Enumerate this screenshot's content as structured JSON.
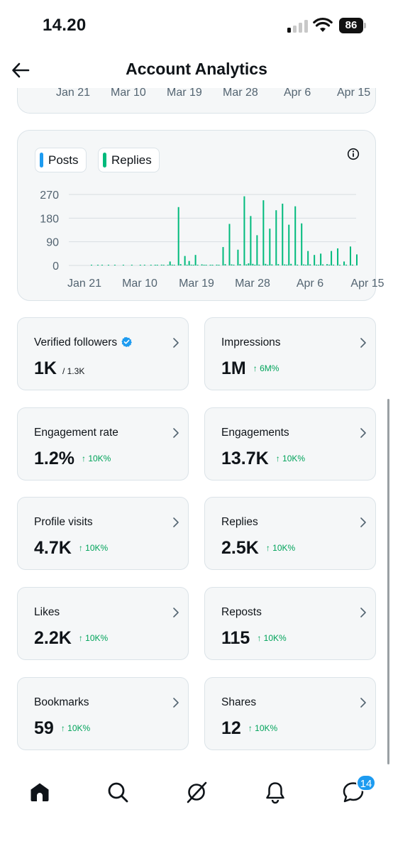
{
  "status_bar": {
    "time": "14.20",
    "battery": "86"
  },
  "header": {
    "title": "Account Analytics"
  },
  "top_chart_axis": [
    "Jan 21",
    "Mar 10",
    "Mar 19",
    "Mar 28",
    "Apr 6",
    "Apr 15"
  ],
  "legend": [
    {
      "label": "Posts",
      "color": "#1d9bf0"
    },
    {
      "label": "Replies",
      "color": "#00ba7c"
    }
  ],
  "chart_data": {
    "type": "bar",
    "ylim": [
      0,
      270
    ],
    "yticks": [
      "270",
      "180",
      "90",
      "0"
    ],
    "xticks": [
      "Jan 21",
      "Mar 10",
      "Mar 19",
      "Mar 28",
      "Apr 6",
      "Apr 15"
    ],
    "series": [
      {
        "name": "Replies",
        "color": "#00ba7c",
        "values": [
          0,
          1,
          0,
          0,
          2,
          0,
          1,
          0,
          0,
          1,
          0,
          0,
          1,
          0,
          0,
          0,
          1,
          0,
          0,
          0,
          1,
          0,
          0,
          0,
          1,
          0,
          1,
          0,
          0,
          1,
          0,
          2,
          1,
          0,
          3,
          1,
          0,
          2,
          15,
          3,
          1,
          0,
          222,
          5,
          0,
          36,
          2,
          17,
          3,
          1,
          40,
          1,
          0,
          4,
          2,
          1,
          0,
          2,
          1,
          0,
          3,
          1,
          0,
          70,
          5,
          0,
          158,
          4,
          3,
          0,
          60,
          5,
          0,
          263,
          4,
          8,
          188,
          6,
          2,
          115,
          3,
          0,
          248,
          6,
          2,
          140,
          4,
          0,
          210,
          5,
          0,
          235,
          4,
          3,
          155,
          6,
          0,
          225,
          3,
          0,
          160,
          4,
          2,
          55,
          4,
          0,
          40,
          3,
          2,
          45,
          4,
          0,
          5,
          3,
          55,
          3,
          0,
          65,
          2,
          0,
          15,
          3,
          0,
          72,
          3,
          0,
          42
        ]
      }
    ]
  },
  "stats": [
    {
      "label": "Verified followers",
      "value": "1K",
      "sub": "/ 1.3K",
      "change": "",
      "verified": true
    },
    {
      "label": "Impressions",
      "value": "1M",
      "sub": "",
      "change": "↑ 6M%"
    },
    {
      "label": "Engagement rate",
      "value": "1.2%",
      "sub": "",
      "change": "↑ 10K%"
    },
    {
      "label": "Engagements",
      "value": "13.7K",
      "sub": "",
      "change": "↑ 10K%"
    },
    {
      "label": "Profile visits",
      "value": "4.7K",
      "sub": "",
      "change": "↑ 10K%"
    },
    {
      "label": "Replies",
      "value": "2.5K",
      "sub": "",
      "change": "↑ 10K%"
    },
    {
      "label": "Likes",
      "value": "2.2K",
      "sub": "",
      "change": "↑ 10K%"
    },
    {
      "label": "Reposts",
      "value": "115",
      "sub": "",
      "change": "↑ 10K%"
    },
    {
      "label": "Bookmarks",
      "value": "59",
      "sub": "",
      "change": "↑ 10K%"
    },
    {
      "label": "Shares",
      "value": "12",
      "sub": "",
      "change": "↑ 10K%"
    }
  ],
  "nav": {
    "items": [
      {
        "icon": "home-icon"
      },
      {
        "icon": "search-icon"
      },
      {
        "icon": "grok-icon"
      },
      {
        "icon": "bell-icon"
      },
      {
        "icon": "messages-icon"
      }
    ],
    "messages_badge": "14"
  }
}
